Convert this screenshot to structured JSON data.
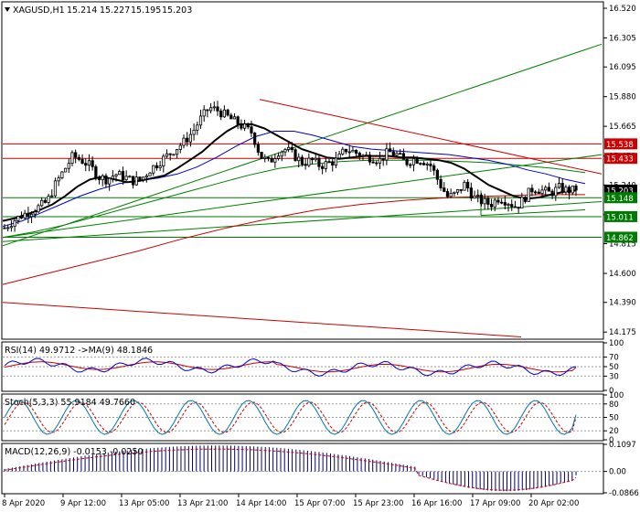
{
  "chart_data": {
    "type": "candlestick",
    "symbol": "XAGUSD,H1",
    "ohlc_header": [
      "15.214",
      "15.227",
      "15.195",
      "15.203"
    ],
    "price_axis": {
      "ticks": [
        "16.520",
        "16.305",
        "16.095",
        "15.880",
        "15.665",
        "15.450",
        "15.240",
        "15.025",
        "14.815",
        "14.600",
        "14.390",
        "14.175"
      ],
      "range": [
        14.13,
        16.56
      ]
    },
    "price_tags": [
      {
        "value": 15.538,
        "label": "15.538",
        "color": "#cc0000",
        "kind": "red-line"
      },
      {
        "value": 15.433,
        "label": "15.433",
        "color": "#cc0000",
        "kind": "red-line"
      },
      {
        "value": 15.203,
        "label": "15.203",
        "color": "#000000",
        "kind": "bid"
      },
      {
        "value": 15.148,
        "label": "15.148",
        "color": "#007a00",
        "kind": "green-line"
      },
      {
        "value": 15.011,
        "label": "15.011",
        "color": "#007a00",
        "kind": "green-line"
      },
      {
        "value": 14.862,
        "label": "14.862",
        "color": "#007a00",
        "kind": "green-line"
      }
    ],
    "time_labels": [
      "8 Apr 2020",
      "9 Apr 12:00",
      "13 Apr 05:00",
      "13 Apr 21:00",
      "14 Apr 14:00",
      "15 Apr 07:00",
      "15 Apr 23:00",
      "16 Apr 16:00",
      "17 Apr 09:00",
      "20 Apr 02:00"
    ],
    "close_series": [
      14.93,
      14.98,
      15.02,
      15.05,
      15.08,
      15.12,
      15.25,
      15.35,
      15.45,
      15.42,
      15.38,
      15.3,
      15.28,
      15.32,
      15.3,
      15.27,
      15.28,
      15.35,
      15.4,
      15.45,
      15.5,
      15.55,
      15.62,
      15.72,
      15.8,
      15.78,
      15.74,
      15.7,
      15.66,
      15.62,
      15.45,
      15.4,
      15.48,
      15.5,
      15.45,
      15.4,
      15.42,
      15.38,
      15.4,
      15.42,
      15.5,
      15.48,
      15.45,
      15.44,
      15.42,
      15.48,
      15.46,
      15.4,
      15.43,
      15.42,
      15.38,
      15.25,
      15.15,
      15.18,
      15.25,
      15.15,
      15.12,
      15.1,
      15.15,
      15.12,
      15.08,
      15.15,
      15.22,
      15.2,
      15.18,
      15.22,
      15.2,
      15.203
    ],
    "overlays": {
      "ma_black": [
        14.98,
        15.0,
        15.03,
        15.06,
        15.1,
        15.16,
        15.23,
        15.28,
        15.3,
        15.28,
        15.26,
        15.27,
        15.29,
        15.31,
        15.36,
        15.42,
        15.48,
        15.56,
        15.63,
        15.68,
        15.68,
        15.65,
        15.6,
        15.55,
        15.5,
        15.47,
        15.44,
        15.43,
        15.44,
        15.45,
        15.45,
        15.45,
        15.44,
        15.44,
        15.43,
        15.42,
        15.4,
        15.36,
        15.3,
        15.24,
        15.2,
        15.16,
        15.14,
        15.15,
        15.17,
        15.19,
        15.2
      ],
      "ma_blue": [
        14.94,
        14.98,
        15.04,
        15.1,
        15.16,
        15.21,
        15.25,
        15.27,
        15.29,
        15.32,
        15.37,
        15.44,
        15.52,
        15.59,
        15.63,
        15.63,
        15.6,
        15.56,
        15.52,
        15.5,
        15.49,
        15.48,
        15.47,
        15.46,
        15.44,
        15.42,
        15.39,
        15.35,
        15.32,
        15.28,
        15.25
      ],
      "ma_green": [
        14.86,
        14.9,
        14.95,
        15.01,
        15.07,
        15.13,
        15.19,
        15.25,
        15.31,
        15.36,
        15.39,
        15.41,
        15.42,
        15.42,
        15.42,
        15.41,
        15.4,
        15.38,
        15.36,
        15.33
      ],
      "ma_red": [
        14.52,
        14.6,
        14.68,
        14.76,
        14.85,
        14.93,
        15.0,
        15.06,
        15.1,
        15.13,
        15.15,
        15.16,
        15.17,
        15.17
      ]
    },
    "indicators": [
      {
        "label": "RSI(14) 49.9712 ->MA(9) 48.1846",
        "ticks": [
          "100",
          "70",
          "50",
          "30",
          "0"
        ],
        "range": [
          0,
          100
        ],
        "rsi": 49.9712,
        "ma": 48.1846
      },
      {
        "label": "Stoch(5,3,3) 55.9184 49.7660",
        "ticks": [
          "100",
          "80",
          "50",
          "20",
          "0"
        ],
        "range": [
          0,
          100
        ],
        "main": 55.9184,
        "signal": 49.766
      },
      {
        "label": "MACD(12,26,9) -0.0153 -0.0250",
        "ticks": [
          "0.1097",
          "0.00",
          "-0.0866"
        ],
        "range": [
          -0.0866,
          0.1097
        ],
        "macd": -0.0153,
        "signal": -0.025
      }
    ]
  }
}
